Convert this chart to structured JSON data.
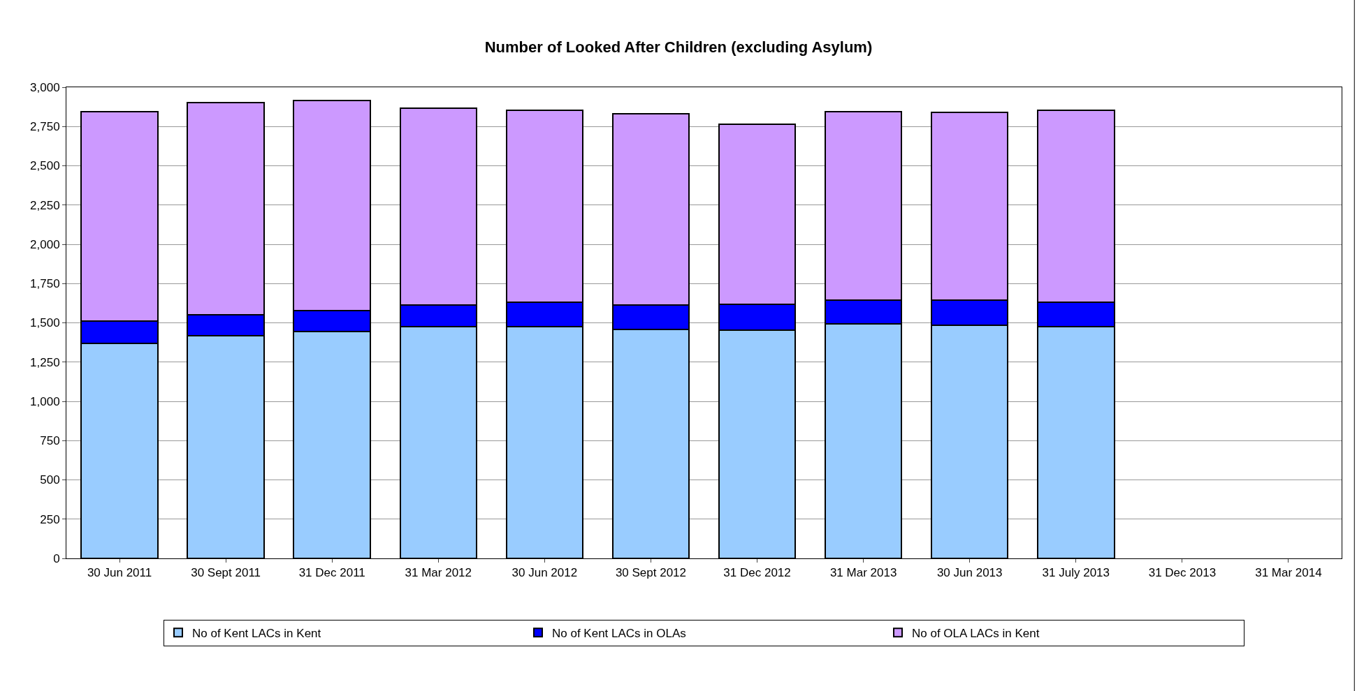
{
  "chart_data": {
    "type": "bar",
    "title": "Number of Looked After Children (excluding Asylum)",
    "stacked": true,
    "categories": [
      "30 Jun 2011",
      "30 Sept 2011",
      "31 Dec 2011",
      "31 Mar 2012",
      "30 Jun 2012",
      "30 Sept 2012",
      "31 Dec 2012",
      "31 Mar 2013",
      "30 Jun 2013",
      "31 July 2013",
      "31 Dec 2013",
      "31 Mar 2014"
    ],
    "series": [
      {
        "name": "No of Kent LACs in Kent",
        "color": "#99ccff",
        "values": [
          1370,
          1417,
          1443,
          1475,
          1474,
          1458,
          1453,
          1495,
          1484,
          1474,
          null,
          null
        ]
      },
      {
        "name": "No of Kent LACs in OLAs",
        "color": "#0000ff",
        "values": [
          140,
          135,
          135,
          140,
          156,
          157,
          167,
          151,
          162,
          156,
          null,
          null
        ]
      },
      {
        "name": "No of OLA LACs in Kent",
        "color": "#cc99ff",
        "values": [
          1334,
          1349,
          1339,
          1250,
          1224,
          1218,
          1146,
          1198,
          1192,
          1224,
          null,
          null
        ]
      }
    ],
    "ylim": [
      0,
      3000
    ],
    "yticks": [
      0,
      {
        "value": 250,
        "label": "250"
      },
      {
        "value": 500,
        "label": "500"
      },
      {
        "value": 750,
        "label": "750"
      },
      {
        "value": 1000,
        "label": "1,000"
      },
      {
        "value": 1250,
        "label": "1,250"
      },
      {
        "value": 1500,
        "label": "1,500"
      },
      {
        "value": 1750,
        "label": "1,750"
      },
      {
        "value": 2000,
        "label": "2,000"
      },
      {
        "value": 2250,
        "label": "2,250"
      },
      {
        "value": 2500,
        "label": "2,500"
      },
      {
        "value": 2750,
        "label": "2,750"
      },
      {
        "value": 3000,
        "label": "3,000"
      }
    ],
    "grid": "y",
    "legend": "bottom"
  }
}
